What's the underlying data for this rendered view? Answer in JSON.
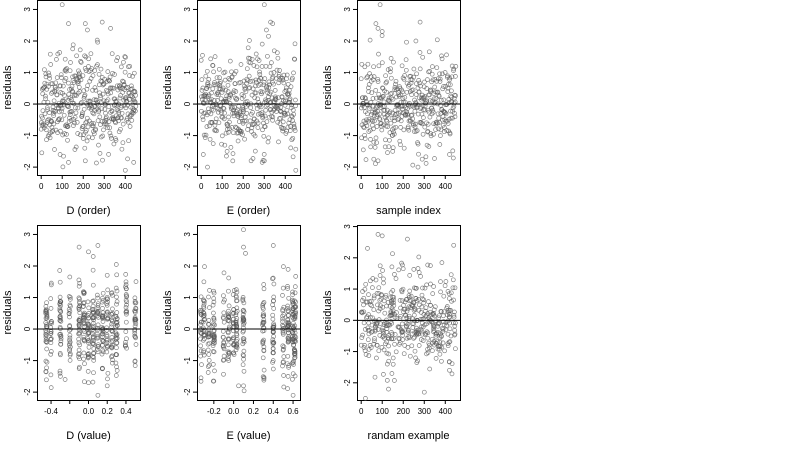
{
  "chart_data": [
    {
      "type": "scatter",
      "xlabel": "D (order)",
      "ylabel": "residuals",
      "xlim": [
        -20,
        470
      ],
      "ylim": [
        -2.25,
        3.3
      ],
      "xticks": [
        0,
        100,
        200,
        300,
        400
      ],
      "xtick_labels": [
        "0",
        "100",
        "200",
        "300",
        "400"
      ],
      "yticks": [
        -2,
        -1,
        0,
        1,
        2,
        3
      ],
      "ytick_labels": [
        "-2",
        "-1",
        "0",
        "1",
        "2",
        "3"
      ],
      "hline": 0,
      "grid": false,
      "marker": "open-circle",
      "colors": {
        "points": "#555555",
        "line": "#000000"
      },
      "x_domain": [
        0,
        450
      ],
      "x_kind": "order",
      "seed": 11,
      "n_points": 450,
      "notable_points": [
        [
          100,
          3.15
        ],
        [
          130,
          2.55
        ],
        [
          150,
          1.75
        ],
        [
          210,
          2.55
        ],
        [
          220,
          2.35
        ],
        [
          290,
          2.6
        ],
        [
          330,
          2.4
        ],
        [
          90,
          -1.6
        ],
        [
          130,
          -1.85
        ],
        [
          210,
          -1.8
        ],
        [
          400,
          -2.1
        ],
        [
          440,
          -1.85
        ]
      ]
    },
    {
      "type": "scatter",
      "xlabel": "E (order)",
      "ylabel": "residuals",
      "xlim": [
        -20,
        470
      ],
      "ylim": [
        -2.25,
        3.3
      ],
      "xticks": [
        0,
        100,
        200,
        300,
        400
      ],
      "xtick_labels": [
        "0",
        "100",
        "200",
        "300",
        "400"
      ],
      "yticks": [
        -2,
        -1,
        0,
        1,
        2,
        3
      ],
      "ytick_labels": [
        "-2",
        "-1",
        "0",
        "1",
        "2",
        "3"
      ],
      "hline": 0,
      "grid": false,
      "marker": "open-circle",
      "colors": {
        "points": "#555555",
        "line": "#000000"
      },
      "x_domain": [
        0,
        450
      ],
      "x_kind": "order",
      "seed": 23,
      "n_points": 450,
      "notable_points": [
        [
          300,
          3.15
        ],
        [
          330,
          2.6
        ],
        [
          340,
          2.55
        ],
        [
          310,
          2.35
        ],
        [
          320,
          2.15
        ],
        [
          290,
          1.9
        ],
        [
          10,
          -1.6
        ],
        [
          30,
          -2.0
        ],
        [
          120,
          -1.65
        ],
        [
          290,
          -1.85
        ],
        [
          450,
          -2.1
        ],
        [
          300,
          -1.8
        ]
      ]
    },
    {
      "type": "scatter",
      "xlabel": "sample index",
      "ylabel": "residuals",
      "xlim": [
        -20,
        470
      ],
      "ylim": [
        -2.25,
        3.3
      ],
      "xticks": [
        0,
        100,
        200,
        300,
        400
      ],
      "xtick_labels": [
        "0",
        "100",
        "200",
        "300",
        "400"
      ],
      "yticks": [
        -2,
        -1,
        0,
        1,
        2,
        3
      ],
      "ytick_labels": [
        "-2",
        "-1",
        "0",
        "1",
        "2",
        "3"
      ],
      "hline": 0,
      "grid": false,
      "marker": "open-circle",
      "colors": {
        "points": "#555555",
        "line": "#000000"
      },
      "x_domain": [
        0,
        450
      ],
      "x_kind": "order",
      "seed": 37,
      "n_points": 450,
      "notable_points": [
        [
          90,
          3.15
        ],
        [
          70,
          2.55
        ],
        [
          80,
          2.4
        ],
        [
          100,
          2.3
        ],
        [
          280,
          2.6
        ],
        [
          260,
          2.0
        ],
        [
          60,
          -1.75
        ],
        [
          80,
          -1.8
        ],
        [
          270,
          -2.0
        ],
        [
          290,
          -1.75
        ],
        [
          420,
          -1.6
        ],
        [
          150,
          -1.5
        ]
      ]
    },
    {
      "type": "scatter",
      "xlabel": "D (value)",
      "ylabel": "residuals",
      "xlim": [
        -0.55,
        0.55
      ],
      "ylim": [
        -2.25,
        3.3
      ],
      "xticks": [
        -0.4,
        -0.2,
        0.0,
        0.2,
        0.4
      ],
      "xtick_labels": [
        "-0.4",
        "",
        "0.0",
        "0.2",
        "0.4"
      ],
      "yticks": [
        -2,
        -1,
        0,
        1,
        2,
        3
      ],
      "ytick_labels": [
        "-2",
        "-1",
        "0",
        "1",
        "2",
        "3"
      ],
      "hline": 0,
      "grid": false,
      "marker": "open-circle",
      "colors": {
        "points": "#555555",
        "line": "#000000"
      },
      "x_domain": [
        -0.5,
        0.5
      ],
      "x_kind": "columns",
      "seed": 51,
      "n_points": 450,
      "x_columns": [
        -0.45,
        -0.4,
        -0.3,
        -0.2,
        -0.1,
        -0.05,
        0.0,
        0.05,
        0.1,
        0.15,
        0.2,
        0.25,
        0.3,
        0.4,
        0.5
      ],
      "notable_points": [
        [
          -0.1,
          2.6
        ],
        [
          0.0,
          2.45
        ],
        [
          0.05,
          2.3
        ],
        [
          0.1,
          2.65
        ],
        [
          -0.2,
          1.65
        ],
        [
          0.4,
          1.5
        ],
        [
          -0.25,
          -1.6
        ],
        [
          -0.3,
          -1.5
        ],
        [
          0.0,
          -1.7
        ],
        [
          0.2,
          -1.8
        ],
        [
          0.1,
          -2.1
        ],
        [
          0.3,
          -1.2
        ]
      ]
    },
    {
      "type": "scatter",
      "xlabel": "E (value)",
      "ylabel": "residuals",
      "xlim": [
        -0.37,
        0.67
      ],
      "ylim": [
        -2.25,
        3.3
      ],
      "xticks": [
        -0.2,
        0.0,
        0.2,
        0.4,
        0.6
      ],
      "xtick_labels": [
        "-0.2",
        "0.0",
        "0.2",
        "0.4",
        "0.6"
      ],
      "yticks": [
        -2,
        -1,
        0,
        1,
        2,
        3
      ],
      "ytick_labels": [
        "-2",
        "-1",
        "0",
        "1",
        "2",
        "3"
      ],
      "hline": 0,
      "grid": false,
      "marker": "open-circle",
      "colors": {
        "points": "#555555",
        "line": "#000000"
      },
      "x_domain": [
        -0.35,
        0.65
      ],
      "x_kind": "columns",
      "seed": 67,
      "n_points": 450,
      "x_columns": [
        -0.33,
        -0.3,
        -0.25,
        -0.2,
        -0.1,
        -0.05,
        0.0,
        0.03,
        0.1,
        0.3,
        0.4,
        0.5,
        0.55,
        0.6,
        0.62
      ],
      "notable_points": [
        [
          0.1,
          3.15
        ],
        [
          0.1,
          2.6
        ],
        [
          0.12,
          2.4
        ],
        [
          0.4,
          2.65
        ],
        [
          -0.3,
          1.5
        ],
        [
          0.5,
          1.3
        ],
        [
          -0.33,
          -1.55
        ],
        [
          -0.2,
          -1.65
        ],
        [
          0.05,
          -1.8
        ],
        [
          0.1,
          -1.8
        ],
        [
          0.6,
          -2.1
        ],
        [
          0.55,
          -1.5
        ]
      ]
    },
    {
      "type": "scatter",
      "xlabel": "randam example",
      "ylabel": "residuals",
      "xlim": [
        -20,
        470
      ],
      "ylim": [
        -2.55,
        3.05
      ],
      "xticks": [
        0,
        100,
        200,
        300,
        400
      ],
      "xtick_labels": [
        "0",
        "100",
        "200",
        "300",
        "400"
      ],
      "yticks": [
        -2,
        -1,
        0,
        1,
        2,
        3
      ],
      "ytick_labels": [
        "-2",
        "-1",
        "0",
        "1",
        "2",
        "3"
      ],
      "hline": 0,
      "grid": false,
      "marker": "open-circle",
      "colors": {
        "points": "#555555",
        "line": "#000000"
      },
      "x_domain": [
        0,
        450
      ],
      "x_kind": "uniform",
      "seed": 83,
      "n_points": 450,
      "notable_points": [
        [
          80,
          2.75
        ],
        [
          100,
          2.7
        ],
        [
          30,
          2.3
        ],
        [
          220,
          2.6
        ],
        [
          440,
          2.4
        ],
        [
          20,
          -2.5
        ],
        [
          130,
          -2.2
        ],
        [
          300,
          -2.3
        ],
        [
          420,
          -1.6
        ]
      ]
    }
  ]
}
